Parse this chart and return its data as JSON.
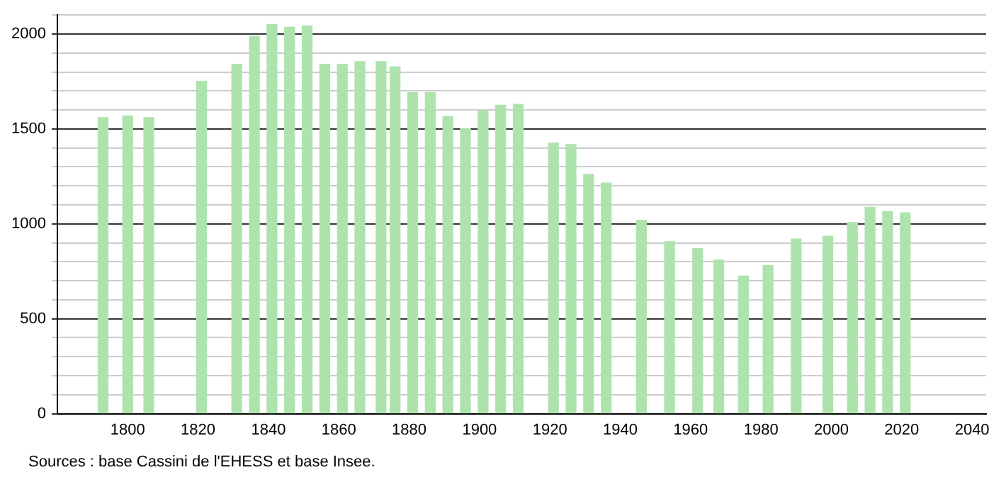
{
  "chart_data": {
    "type": "bar",
    "x": [
      1793,
      1800,
      1806,
      1821,
      1831,
      1836,
      1841,
      1846,
      1851,
      1856,
      1861,
      1866,
      1872,
      1876,
      1881,
      1886,
      1891,
      1896,
      1901,
      1906,
      1911,
      1921,
      1926,
      1931,
      1936,
      1946,
      1954,
      1962,
      1968,
      1975,
      1982,
      1990,
      1999,
      2006,
      2011,
      2016,
      2021
    ],
    "values": [
      1560,
      1568,
      1560,
      1751,
      1841,
      1986,
      2051,
      2036,
      2043,
      1841,
      1841,
      1855,
      1855,
      1828,
      1691,
      1691,
      1565,
      1502,
      1594,
      1625,
      1630,
      1425,
      1418,
      1261,
      1215,
      1019,
      906,
      870,
      809,
      725,
      780,
      920,
      935,
      1007,
      1087,
      1065,
      1058
    ],
    "color": "#aee3ae",
    "xlim": [
      1780,
      2044
    ],
    "xticks": [
      1800,
      1820,
      1840,
      1860,
      1880,
      1900,
      1920,
      1940,
      1960,
      1980,
      2000,
      2020,
      2040
    ],
    "ylim": [
      0,
      2100
    ],
    "yticks": [
      0,
      {
        "value": 100,
        "label": null
      },
      {
        "value": 200,
        "label": null
      },
      {
        "value": 300,
        "label": null
      },
      {
        "value": 400,
        "label": null
      },
      500,
      {
        "value": 600,
        "label": null
      },
      {
        "value": 700,
        "label": null
      },
      {
        "value": 800,
        "label": null
      },
      {
        "value": 900,
        "label": null
      },
      1000,
      {
        "value": 1100,
        "label": null
      },
      {
        "value": 1200,
        "label": null
      },
      {
        "value": 1300,
        "label": null
      },
      {
        "value": 1400,
        "label": null
      },
      1500,
      {
        "value": 1600,
        "label": null
      },
      {
        "value": 1700,
        "label": null
      },
      {
        "value": 1800,
        "label": null
      },
      {
        "value": 1900,
        "label": null
      },
      2000,
      {
        "value": 2100,
        "label": null
      }
    ],
    "grid": "y",
    "annotations": [
      "Sources : base Cassini de l'EHESS et base Insee."
    ]
  }
}
